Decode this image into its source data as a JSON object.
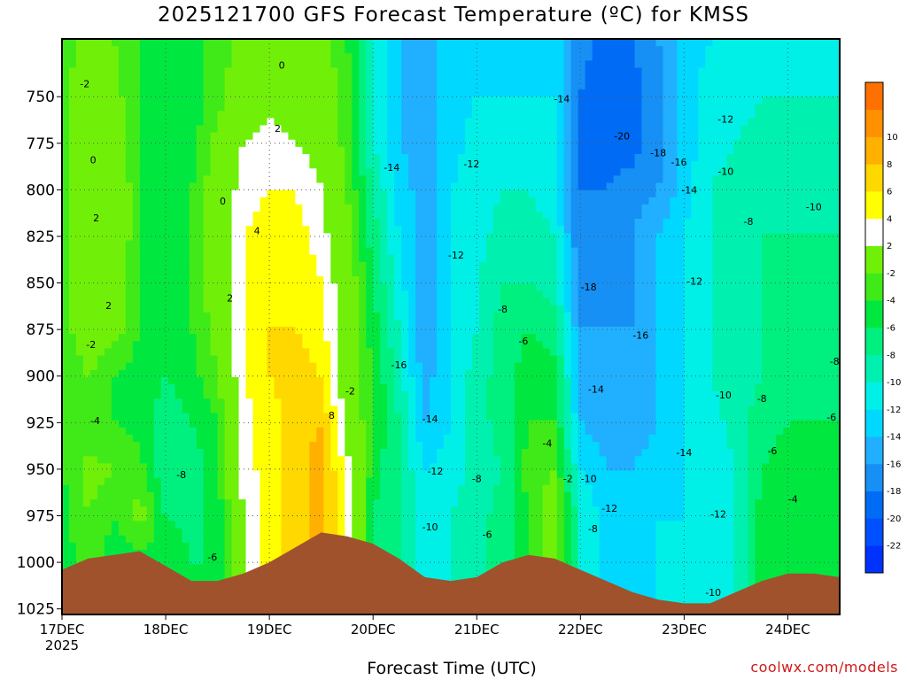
{
  "title": "2025121700 GFS Forecast Temperature (ºC) for KMSS",
  "credit": "coolwx.com/models",
  "chart_data": {
    "type": "heatmap",
    "title": "2025121700 GFS Forecast Temperature (ºC) for KMSS",
    "xlabel": "Forecast Time (UTC)",
    "ylabel": "",
    "x_ticks": [
      "17DEC",
      "18DEC",
      "19DEC",
      "20DEC",
      "21DEC",
      "22DEC",
      "23DEC",
      "24DEC"
    ],
    "x_subtick": "2025",
    "x_range_days": [
      0,
      7.5
    ],
    "y_ticks": [
      750,
      775,
      800,
      825,
      850,
      875,
      900,
      925,
      950,
      975,
      1000,
      1025
    ],
    "ylim": [
      1028,
      719
    ],
    "colorbar": {
      "boundaries": [
        -24,
        -22,
        -20,
        -18,
        -16,
        -14,
        -12,
        -10,
        -8,
        -6,
        -4,
        -2,
        2,
        4,
        6,
        8,
        10,
        12
      ],
      "labels": [
        -22,
        -20,
        -18,
        -16,
        -14,
        -12,
        -10,
        -8,
        -6,
        -4,
        -2,
        2,
        4,
        6,
        8,
        10
      ],
      "colors": [
        "#0032ff",
        "#0050ff",
        "#006cf5",
        "#1690f5",
        "#20b0ff",
        "#00d8ff",
        "#00f0e8",
        "#00f0b0",
        "#00f080",
        "#00e840",
        "#40ea18",
        "#70f008",
        "#ffffff",
        "#ffff00",
        "#ffd800",
        "#ffb000",
        "#ff9000",
        "#ff7000"
      ]
    },
    "columns": [
      {
        "day": 0.0,
        "t": [
          -3,
          -3,
          -3,
          -3,
          -3,
          -3,
          -3,
          -4,
          -4,
          -4,
          -5,
          -5,
          -5
        ],
        "sfc": 1004
      },
      {
        "day": 0.25,
        "t": [
          -1,
          0,
          0,
          2,
          2,
          1,
          0,
          -2,
          -4,
          -1,
          -2,
          -3,
          -3
        ],
        "sfc": 998
      },
      {
        "day": 0.5,
        "t": [
          -2,
          -1,
          0,
          1,
          1,
          0,
          -1,
          -4,
          -4,
          -2,
          -4,
          -5,
          -5
        ],
        "sfc": 996
      },
      {
        "day": 0.75,
        "t": [
          -4,
          -4,
          -4,
          -4,
          -4,
          -4,
          -4,
          -5,
          -5,
          -3,
          -1,
          -5,
          -5
        ],
        "sfc": 994
      },
      {
        "day": 1.0,
        "t": [
          -5,
          -5,
          -5,
          -5,
          -5,
          -5,
          -5,
          -6,
          -7,
          -8,
          -6,
          -4,
          -4
        ],
        "sfc": 1002
      },
      {
        "day": 1.25,
        "t": [
          -5,
          -5,
          -5,
          -4,
          -4,
          -4,
          -4,
          -5,
          -6,
          -7,
          -7,
          -6,
          -6
        ],
        "sfc": 1010
      },
      {
        "day": 1.5,
        "t": [
          -3,
          -3,
          -1,
          0,
          0,
          0,
          -1,
          -2,
          -4,
          -5,
          -5,
          -6,
          -6
        ],
        "sfc": 1010
      },
      {
        "day": 1.75,
        "t": [
          -1,
          0,
          2,
          3,
          4,
          4,
          4,
          4,
          3,
          3,
          2,
          2,
          2
        ],
        "sfc": 1006
      },
      {
        "day": 2.0,
        "t": [
          0,
          1,
          3,
          4,
          5,
          5,
          6,
          6,
          5,
          5,
          5,
          5,
          5
        ],
        "sfc": 1000
      },
      {
        "day": 2.25,
        "t": [
          0,
          1,
          2,
          4,
          5,
          6,
          6,
          7,
          7,
          7,
          7,
          7,
          7
        ],
        "sfc": 992
      },
      {
        "day": 2.5,
        "t": [
          -1,
          0,
          1,
          2,
          3,
          4,
          5,
          6,
          8,
          9,
          9,
          9,
          9
        ],
        "sfc": 984
      },
      {
        "day": 2.75,
        "t": [
          -4,
          -3,
          -3,
          -2,
          -1,
          0,
          0,
          0,
          1,
          3,
          4,
          4,
          4
        ],
        "sfc": 986
      },
      {
        "day": 3.0,
        "t": [
          -10,
          -10,
          -10,
          -8,
          -7,
          -6,
          -5,
          -4,
          -4,
          -5,
          -6,
          -6,
          -6
        ],
        "sfc": 990
      },
      {
        "day": 3.25,
        "t": [
          -14,
          -14,
          -14,
          -13,
          -12,
          -11,
          -10,
          -9,
          -8,
          -8,
          -8,
          -8,
          -8
        ],
        "sfc": 998
      },
      {
        "day": 3.5,
        "t": [
          -14,
          -15,
          -15,
          -15,
          -15,
          -16,
          -16,
          -15,
          -14,
          -12,
          -11,
          -11,
          -11
        ],
        "sfc": 1008
      },
      {
        "day": 3.75,
        "t": [
          -14,
          -13,
          -13,
          -12,
          -12,
          -12,
          -12,
          -12,
          -12,
          -11,
          -10,
          -10,
          -10
        ],
        "sfc": 1010
      },
      {
        "day": 4.0,
        "t": [
          -12,
          -12,
          -11,
          -11,
          -11,
          -10,
          -10,
          -9,
          -9,
          -9,
          -9,
          -9,
          -9
        ],
        "sfc": 1008
      },
      {
        "day": 4.25,
        "t": [
          -13,
          -12,
          -11,
          -10,
          -9,
          -8,
          -7,
          -7,
          -7,
          -8,
          -7,
          -7,
          -7
        ],
        "sfc": 1000
      },
      {
        "day": 4.5,
        "t": [
          -13,
          -12,
          -11,
          -10,
          -9,
          -8,
          -6,
          -5,
          -4,
          -3,
          -4,
          -4,
          -4
        ],
        "sfc": 996
      },
      {
        "day": 4.75,
        "t": [
          -13,
          -12,
          -11,
          -11,
          -10,
          -9,
          -7,
          -5,
          -4,
          -2,
          0,
          0,
          0
        ],
        "sfc": 998
      },
      {
        "day": 5.0,
        "t": [
          -17,
          -18,
          -18,
          -18,
          -18,
          -17,
          -16,
          -15,
          -14,
          -12,
          -10,
          -10,
          -10
        ],
        "sfc": 1004
      },
      {
        "day": 5.25,
        "t": [
          -19,
          -20,
          -19,
          -18,
          -18,
          -17,
          -16,
          -16,
          -15,
          -14,
          -13,
          -13,
          -13
        ],
        "sfc": 1010
      },
      {
        "day": 5.5,
        "t": [
          -18,
          -19,
          -19,
          -17,
          -16,
          -16,
          -16,
          -16,
          -15,
          -14,
          -13,
          -13,
          -13
        ],
        "sfc": 1016
      },
      {
        "day": 5.75,
        "t": [
          -16,
          -17,
          -17,
          -16,
          -14,
          -14,
          -14,
          -14,
          -14,
          -13,
          -12,
          -12,
          -12
        ],
        "sfc": 1020
      },
      {
        "day": 6.0,
        "t": [
          -13,
          -13,
          -13,
          -13,
          -12,
          -12,
          -12,
          -12,
          -12,
          -12,
          -12,
          -12,
          -12
        ],
        "sfc": 1022
      },
      {
        "day": 6.25,
        "t": [
          -12,
          -11,
          -11,
          -10,
          -10,
          -10,
          -10,
          -10,
          -11,
          -12,
          -11,
          -11,
          -11
        ],
        "sfc": 1022
      },
      {
        "day": 6.5,
        "t": [
          -12,
          -11,
          -10,
          -9,
          -9,
          -9,
          -9,
          -9,
          -9,
          -10,
          -10,
          -10,
          -10
        ],
        "sfc": 1016
      },
      {
        "day": 6.75,
        "t": [
          -11,
          -10,
          -9,
          -8,
          -8,
          -8,
          -8,
          -8,
          -7,
          -6,
          -5,
          -5,
          -5
        ],
        "sfc": 1010
      },
      {
        "day": 7.0,
        "t": [
          -11,
          -10,
          -10,
          -9,
          -8,
          -8,
          -7,
          -6,
          -6,
          -5,
          -4,
          -4,
          -4
        ],
        "sfc": 1006
      },
      {
        "day": 7.25,
        "t": [
          -11,
          -10,
          -10,
          -9,
          -8,
          -8,
          -8,
          -7,
          -6,
          -5,
          -5,
          -5,
          -5
        ],
        "sfc": 1006
      },
      {
        "day": 7.5,
        "t": [
          -11,
          -10,
          -10,
          -9,
          -8,
          -8,
          -8,
          -7,
          -6,
          -5,
          -5,
          -5,
          -5
        ],
        "sfc": 1008
      }
    ],
    "column_levels": [
      720,
      750,
      775,
      800,
      825,
      850,
      875,
      900,
      925,
      950,
      975,
      1000,
      1028
    ],
    "contour_labels": [
      {
        "text": "-2",
        "day": 0.22,
        "p": 743
      },
      {
        "text": "0",
        "day": 0.3,
        "p": 784
      },
      {
        "text": "2",
        "day": 0.33,
        "p": 815
      },
      {
        "text": "2",
        "day": 0.45,
        "p": 862
      },
      {
        "text": "-2",
        "day": 0.28,
        "p": 883
      },
      {
        "text": "-4",
        "day": 0.32,
        "p": 924
      },
      {
        "text": "-8",
        "day": 1.15,
        "p": 953
      },
      {
        "text": "-6",
        "day": 1.45,
        "p": 997
      },
      {
        "text": "0",
        "day": 2.12,
        "p": 733
      },
      {
        "text": "2",
        "day": 2.08,
        "p": 767
      },
      {
        "text": "4",
        "day": 1.88,
        "p": 822
      },
      {
        "text": "0",
        "day": 1.55,
        "p": 806
      },
      {
        "text": "2",
        "day": 1.62,
        "p": 858
      },
      {
        "text": "8",
        "day": 2.6,
        "p": 921
      },
      {
        "text": "-2",
        "day": 2.78,
        "p": 908
      },
      {
        "text": "-14",
        "day": 3.18,
        "p": 788
      },
      {
        "text": "-16",
        "day": 3.25,
        "p": 894
      },
      {
        "text": "-14",
        "day": 3.55,
        "p": 923
      },
      {
        "text": "-12",
        "day": 3.6,
        "p": 951
      },
      {
        "text": "-10",
        "day": 3.55,
        "p": 981
      },
      {
        "text": "-12",
        "day": 3.95,
        "p": 786
      },
      {
        "text": "-12",
        "day": 3.8,
        "p": 835
      },
      {
        "text": "-8",
        "day": 4.25,
        "p": 864
      },
      {
        "text": "-6",
        "day": 4.45,
        "p": 881
      },
      {
        "text": "-8",
        "day": 4.0,
        "p": 955
      },
      {
        "text": "-6",
        "day": 4.1,
        "p": 985
      },
      {
        "text": "-4",
        "day": 4.68,
        "p": 936
      },
      {
        "text": "-2",
        "day": 4.88,
        "p": 955
      },
      {
        "text": "-14",
        "day": 4.82,
        "p": 751
      },
      {
        "text": "-20",
        "day": 5.4,
        "p": 771
      },
      {
        "text": "-18",
        "day": 5.75,
        "p": 780
      },
      {
        "text": "-16",
        "day": 5.95,
        "p": 785
      },
      {
        "text": "-14",
        "day": 6.05,
        "p": 800
      },
      {
        "text": "-18",
        "day": 5.08,
        "p": 852
      },
      {
        "text": "-16",
        "day": 5.58,
        "p": 878
      },
      {
        "text": "-14",
        "day": 5.15,
        "p": 907
      },
      {
        "text": "-10",
        "day": 5.08,
        "p": 955
      },
      {
        "text": "-12",
        "day": 5.28,
        "p": 971
      },
      {
        "text": "-8",
        "day": 5.12,
        "p": 982
      },
      {
        "text": "-14",
        "day": 6.0,
        "p": 941
      },
      {
        "text": "-12",
        "day": 6.1,
        "p": 849
      },
      {
        "text": "-12",
        "day": 6.4,
        "p": 762
      },
      {
        "text": "-10",
        "day": 6.4,
        "p": 790
      },
      {
        "text": "-10",
        "day": 7.25,
        "p": 809
      },
      {
        "text": "-8",
        "day": 6.62,
        "p": 817
      },
      {
        "text": "-10",
        "day": 6.38,
        "p": 910
      },
      {
        "text": "-8",
        "day": 6.75,
        "p": 912
      },
      {
        "text": "-6",
        "day": 6.85,
        "p": 940
      },
      {
        "text": "-4",
        "day": 7.05,
        "p": 966
      },
      {
        "text": "-8",
        "day": 7.45,
        "p": 892
      },
      {
        "text": "-6",
        "day": 7.42,
        "p": 922
      },
      {
        "text": "-12",
        "day": 6.33,
        "p": 974
      },
      {
        "text": "-10",
        "day": 6.28,
        "p": 1016
      }
    ],
    "grid": true,
    "legend": "right colorbar"
  }
}
